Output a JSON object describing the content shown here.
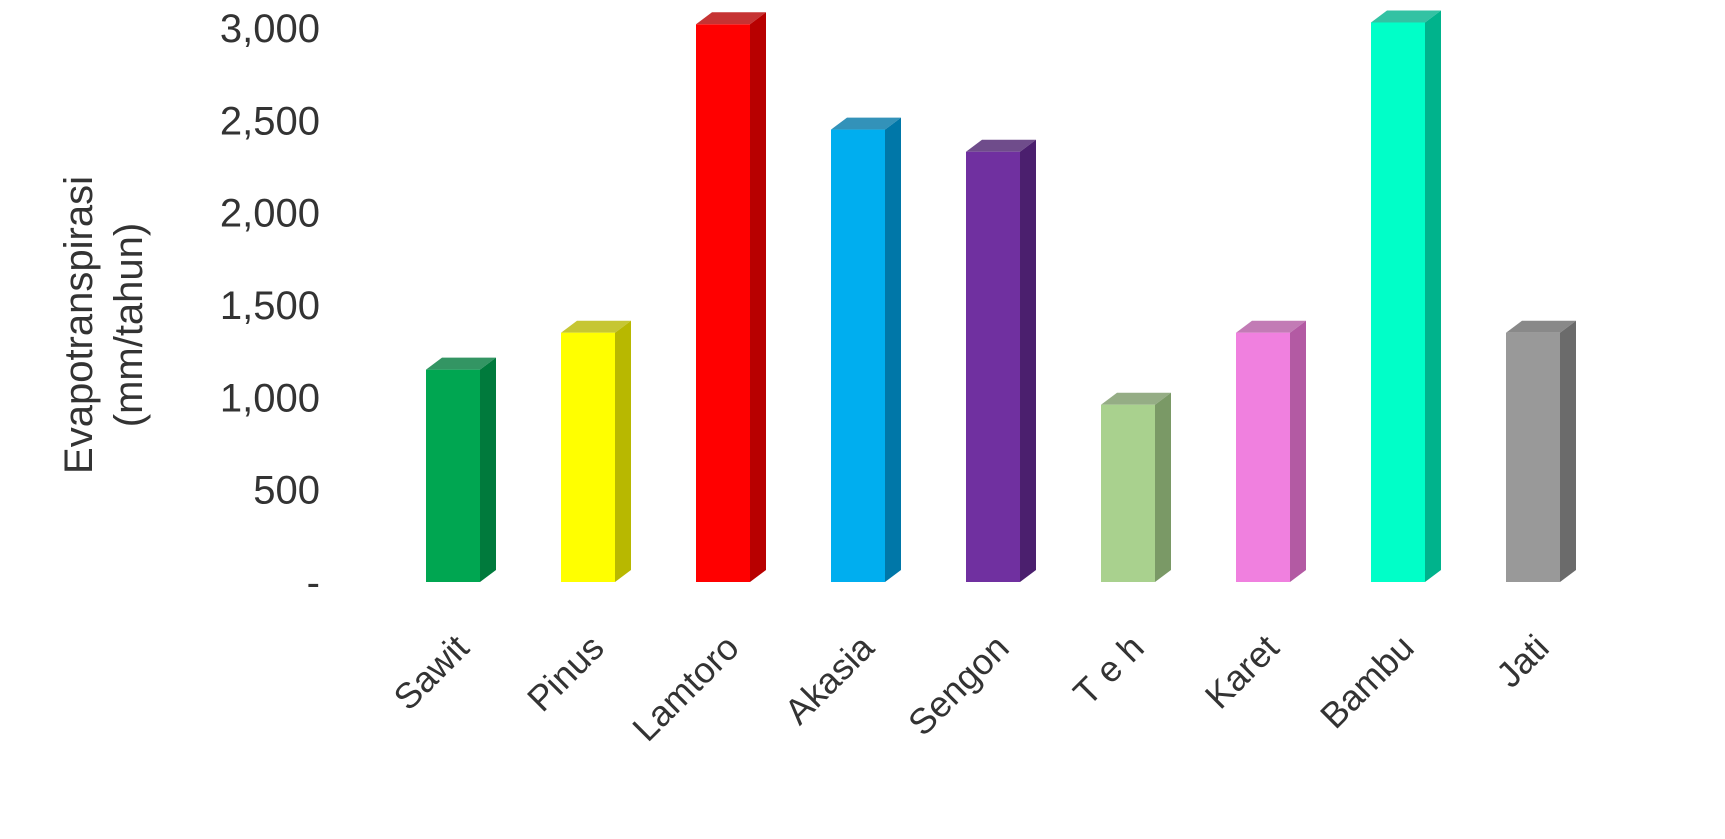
{
  "chart_data": {
    "type": "bar",
    "style": "3d-column",
    "categories": [
      "Sawit",
      "Pinus",
      "Lamtoro",
      "Akasia",
      "Sengon",
      "T e h",
      "Karet",
      "Bambu",
      "Jati"
    ],
    "values": [
      1150,
      1350,
      3020,
      2450,
      2330,
      960,
      1350,
      3030,
      1350
    ],
    "colors": [
      "#00A651",
      "#FFFF00",
      "#FF0000",
      "#00AEEF",
      "#7030A0",
      "#A9D18E",
      "#F080DF",
      "#00FFC8",
      "#999999"
    ],
    "side_colors": [
      "#007A3C",
      "#B8B800",
      "#B80000",
      "#0077A8",
      "#4B1F6E",
      "#7A9966",
      "#B35AA3",
      "#00B38C",
      "#6B6B6B"
    ],
    "ylabel_line1": "Evapotranspirasi",
    "ylabel_line2": "(mm/tahun)",
    "ylim": [
      0,
      3000
    ],
    "yticks": [
      {
        "value": 0,
        "label": "-"
      },
      {
        "value": 500,
        "label": "500"
      },
      {
        "value": 1000,
        "label": "1,000"
      },
      {
        "value": 1500,
        "label": "1,500"
      },
      {
        "value": 2000,
        "label": "2,000"
      },
      {
        "value": 2500,
        "label": "2,500"
      },
      {
        "value": 3000,
        "label": "3,000"
      }
    ],
    "grid": false,
    "legend": "none"
  }
}
